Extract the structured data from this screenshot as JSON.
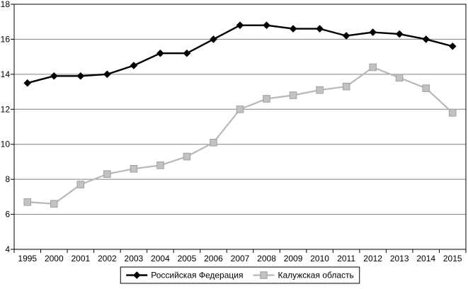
{
  "chart_data": {
    "type": "line",
    "title": "",
    "xlabel": "",
    "ylabel": "",
    "categories": [
      "1995",
      "2000",
      "2001",
      "2002",
      "2003",
      "2004",
      "2005",
      "2006",
      "2007",
      "2008",
      "2009",
      "2010",
      "2011",
      "2012",
      "2013",
      "2014",
      "2015"
    ],
    "series": [
      {
        "name": "Российская Федерация",
        "marker": "diamond",
        "line_color": "#000000",
        "marker_fill": "#000000",
        "marker_edge": "#000000",
        "line_width": 2.4,
        "values": [
          13.5,
          13.9,
          13.9,
          14.0,
          14.5,
          15.2,
          15.2,
          16.0,
          16.8,
          16.8,
          16.6,
          16.6,
          16.2,
          16.4,
          16.3,
          16.0,
          15.6
        ]
      },
      {
        "name": "Калужская область",
        "marker": "square",
        "line_color": "#b8b8b8",
        "marker_fill": "#c2c2c2",
        "marker_edge": "#a0a0a0",
        "line_width": 2.2,
        "values": [
          6.7,
          6.6,
          7.7,
          8.3,
          8.6,
          8.8,
          9.3,
          10.1,
          12.0,
          12.6,
          12.8,
          13.1,
          13.3,
          14.4,
          13.8,
          13.2,
          11.8
        ]
      }
    ],
    "ylim": [
      4,
      18
    ],
    "y_ticks": [
      4,
      6,
      8,
      10,
      12,
      14,
      16,
      18
    ],
    "grid": true,
    "gridline_color": "#808080",
    "axis_color": "#000000",
    "background": "#ffffff",
    "legend_position": "bottom"
  }
}
